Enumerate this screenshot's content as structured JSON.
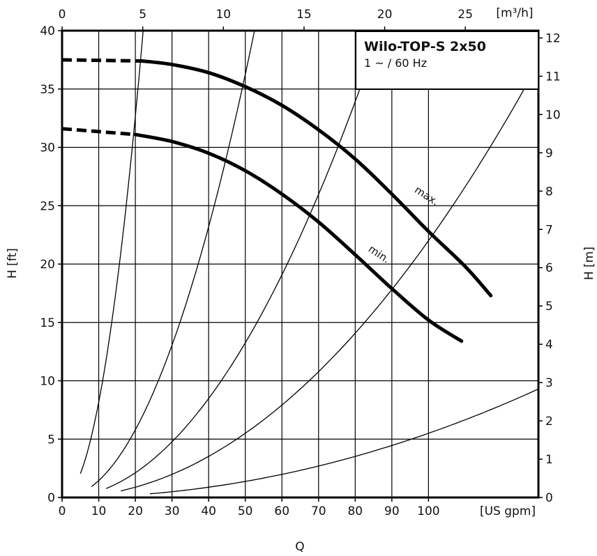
{
  "chart_data": {
    "type": "line",
    "legend": {
      "title": "Wilo-TOP-S 2x50",
      "subtitle": "1 ~ / 60 Hz"
    },
    "x_bottom": {
      "label": "Q",
      "unit": "[US gpm]",
      "range": [
        0,
        130
      ],
      "ticks": [
        "0",
        "10",
        "20",
        "30",
        "40",
        "50",
        "60",
        "70",
        "80",
        "90",
        "100"
      ]
    },
    "x_top": {
      "unit": "[m³/h]",
      "range": [
        0,
        29.53
      ],
      "ticks": [
        "0",
        "5",
        "10",
        "15",
        "20",
        "25"
      ]
    },
    "y_left": {
      "label": "H [ft]",
      "range": [
        0,
        40
      ],
      "ticks": [
        "0",
        "5",
        "10",
        "15",
        "20",
        "25",
        "30",
        "35",
        "40"
      ]
    },
    "y_right": {
      "label": "H [m]",
      "range": [
        0,
        12.19
      ],
      "ticks": [
        "0",
        "1",
        "2",
        "3",
        "4",
        "5",
        "6",
        "7",
        "8",
        "9",
        "10",
        "11",
        "12"
      ]
    },
    "grid": true,
    "series": [
      {
        "name": "max.",
        "style": "thick",
        "dashed_points": [
          [
            0,
            37.5
          ],
          [
            22,
            37.4
          ]
        ],
        "points": [
          [
            22,
            37.4
          ],
          [
            30,
            37.1
          ],
          [
            40,
            36.4
          ],
          [
            50,
            35.2
          ],
          [
            60,
            33.6
          ],
          [
            70,
            31.5
          ],
          [
            80,
            29.0
          ],
          [
            90,
            26.0
          ],
          [
            100,
            22.8
          ],
          [
            110,
            19.8
          ],
          [
            117,
            17.3
          ]
        ]
      },
      {
        "name": "min.",
        "style": "thick",
        "dashed_points": [
          [
            0,
            31.6
          ],
          [
            20,
            31.1
          ]
        ],
        "points": [
          [
            20,
            31.1
          ],
          [
            30,
            30.5
          ],
          [
            40,
            29.5
          ],
          [
            50,
            28.0
          ],
          [
            60,
            26.0
          ],
          [
            70,
            23.6
          ],
          [
            80,
            20.8
          ],
          [
            90,
            17.9
          ],
          [
            100,
            15.2
          ],
          [
            109,
            13.4
          ]
        ]
      }
    ],
    "system_curves": [
      {
        "k": 0.0817,
        "x": [
          5,
          24
        ]
      },
      {
        "k": 0.0145,
        "x": [
          8,
          53
        ]
      },
      {
        "k": 0.0053,
        "x": [
          12,
          88
        ]
      },
      {
        "k": 0.0022,
        "x": [
          16,
          130
        ]
      },
      {
        "k": 0.00055,
        "x": [
          24,
          130
        ]
      }
    ]
  }
}
